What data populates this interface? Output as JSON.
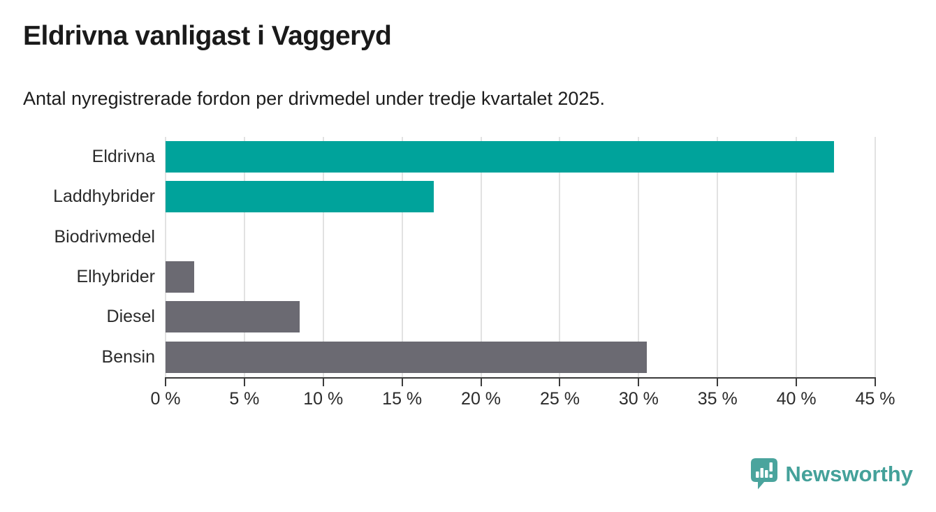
{
  "header": {
    "title": "Eldrivna vanligast i Vaggeryd",
    "subtitle": "Antal nyregistrerade fordon per drivmedel under tredje kvartalet 2025."
  },
  "chart_data": {
    "type": "bar",
    "orientation": "horizontal",
    "categories": [
      "Eldrivna",
      "Laddhybrider",
      "Biodrivmedel",
      "Elhybrider",
      "Diesel",
      "Bensin"
    ],
    "values": [
      42.4,
      17.0,
      0,
      1.8,
      8.5,
      30.5
    ],
    "unit": "%",
    "bar_colors": [
      "#00a39b",
      "#00a39b",
      "#6b6a72",
      "#6b6a72",
      "#6b6a72",
      "#6b6a72"
    ],
    "xlim": [
      0,
      45
    ],
    "x_tick_labels": [
      "0 %",
      "5 %",
      "10 %",
      "15 %",
      "20 %",
      "25 %",
      "30 %",
      "35 %",
      "40 %",
      "45 %"
    ],
    "grid": true,
    "legend": false
  },
  "branding": {
    "logo_text": "Newsworthy",
    "logo_color": "#44a19a",
    "logo_icon": "speech-bubble-bar-chart-icon"
  },
  "colors": {
    "teal_bar": "#00a39b",
    "gray_bar": "#6b6a72",
    "gridline": "#e2e2e2",
    "axis": "#3b3b3b",
    "title_text": "#1a1a1a",
    "label_text": "#2b2b2b",
    "logo_teal": "#44a19a"
  }
}
